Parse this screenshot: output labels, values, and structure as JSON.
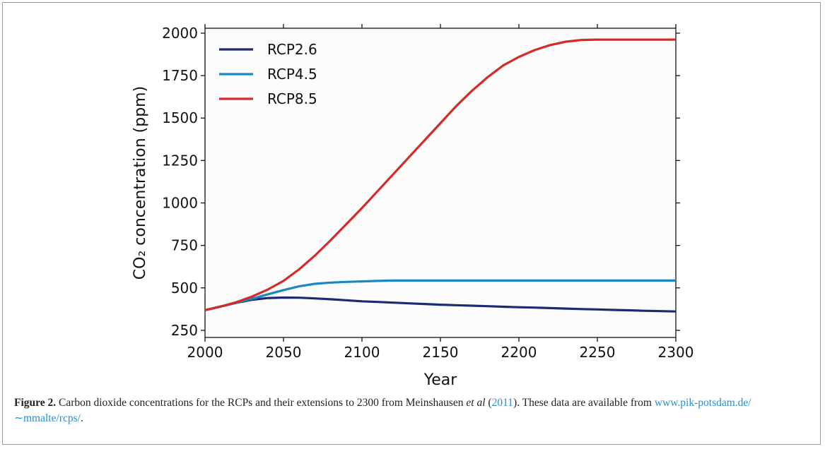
{
  "chart_data": {
    "type": "line",
    "x": [
      2000,
      2010,
      2020,
      2030,
      2040,
      2050,
      2060,
      2070,
      2080,
      2090,
      2100,
      2110,
      2120,
      2130,
      2140,
      2150,
      2160,
      2170,
      2180,
      2190,
      2200,
      2210,
      2220,
      2230,
      2240,
      2250,
      2260,
      2270,
      2280,
      2290,
      2300
    ],
    "series": [
      {
        "name": "RCP2.6",
        "color": "#1c2a73",
        "values": [
          369,
          390,
          412,
          430,
          440,
          443,
          442,
          438,
          433,
          427,
          421,
          417,
          413,
          409,
          405,
          401,
          398,
          395,
          392,
          389,
          386,
          384,
          381,
          378,
          375,
          373,
          370,
          368,
          365,
          363,
          361
        ]
      },
      {
        "name": "RCP4.5",
        "color": "#1b87c3",
        "values": [
          369,
          390,
          413,
          436,
          462,
          487,
          509,
          524,
          531,
          535,
          538,
          541,
          543,
          543,
          543,
          543,
          543,
          543,
          543,
          543,
          543,
          543,
          543,
          543,
          543,
          543,
          543,
          543,
          543,
          543,
          543
        ]
      },
      {
        "name": "RCP8.5",
        "color": "#d42b27",
        "values": [
          369,
          390,
          416,
          449,
          490,
          541,
          609,
          690,
          780,
          875,
          970,
          1070,
          1170,
          1270,
          1370,
          1470,
          1570,
          1660,
          1740,
          1810,
          1860,
          1900,
          1930,
          1950,
          1960,
          1962,
          1962,
          1962,
          1962,
          1962,
          1962
        ]
      }
    ],
    "xlabel": "Year",
    "ylabel": "CO₂ concentration (ppm)",
    "xlim": [
      2000,
      2300
    ],
    "xticks": [
      2000,
      2050,
      2100,
      2150,
      2200,
      2250,
      2300
    ],
    "ylim": [
      208,
      2029
    ],
    "yticks": [
      250,
      500,
      750,
      1000,
      1250,
      1500,
      1750,
      2000
    ],
    "legend": "upper left"
  },
  "caption": {
    "label": "Figure 2.",
    "text_before": " Carbon dioxide concentrations for the RCPs and their extensions to 2300 from Meinshausen ",
    "emphasis": "et al",
    "text_mid": " (",
    "citation": "2011",
    "text_after": "). These data are available from ",
    "link": "www.pik-potsdam.de/∼mmalte/rcps/",
    "end": "."
  }
}
